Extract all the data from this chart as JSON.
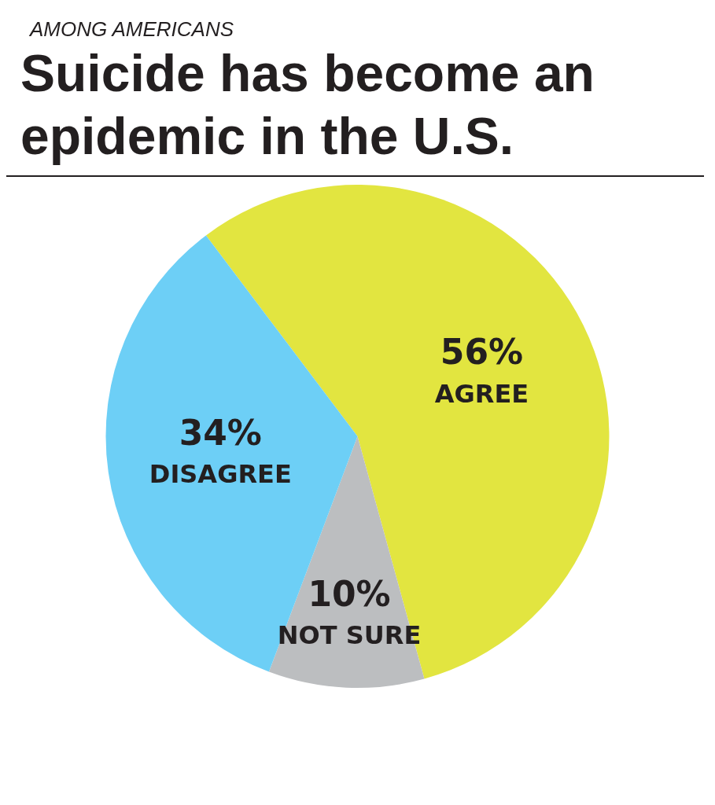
{
  "chart_data": {
    "type": "pie",
    "subtitle": "AMONG AMERICANS",
    "title": "Suicide has become an epidemic in the U.S.",
    "categories": [
      "AGREE",
      "NOT SURE",
      "DISAGREE"
    ],
    "values": [
      56,
      10,
      34
    ],
    "colors": [
      "#e2e540",
      "#bcbec0",
      "#6dcff6"
    ],
    "value_labels": [
      "56%",
      "10%",
      "34%"
    ],
    "legend": false
  }
}
